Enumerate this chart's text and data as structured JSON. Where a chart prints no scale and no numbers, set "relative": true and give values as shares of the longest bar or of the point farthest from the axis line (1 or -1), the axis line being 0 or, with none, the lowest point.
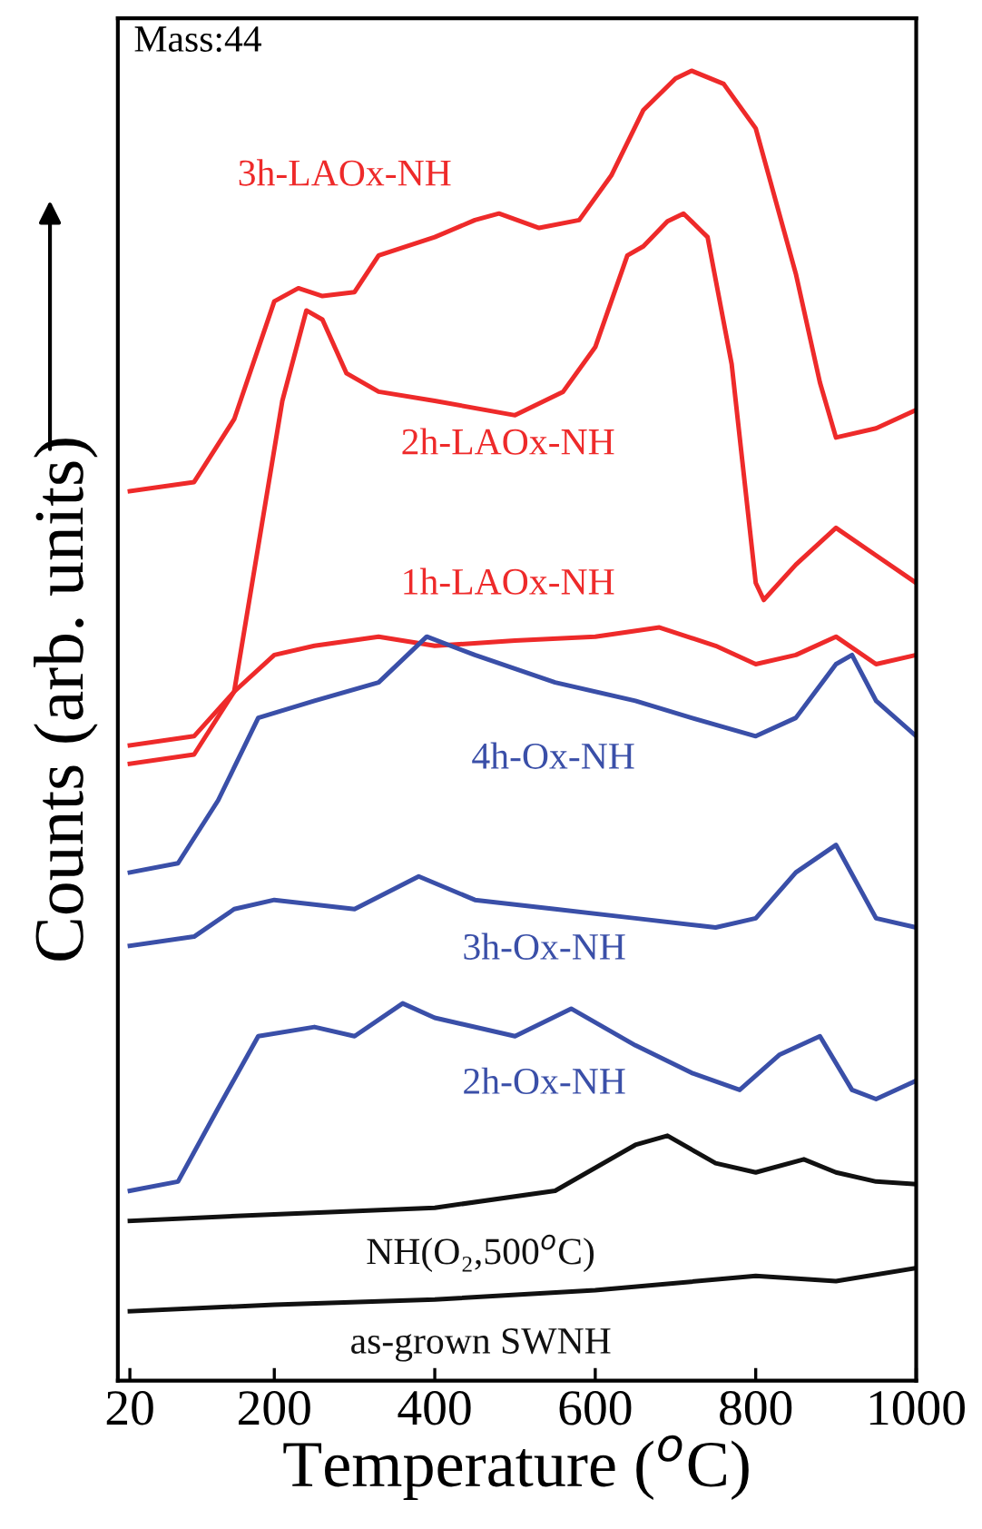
{
  "chart_data": {
    "type": "line",
    "relative": true,
    "xlabel": "Temperature ($^{o}$C)",
    "ylabel": "Counts (arb. units)",
    "xlim": [
      5,
      1000
    ],
    "xticks": [
      20,
      200,
      400,
      600,
      800,
      1000
    ],
    "grid": false,
    "legend": false,
    "marker": "none",
    "line_style": "solid",
    "annotations": [
      "Mass:44"
    ],
    "series": [
      {
        "name": "3h-LAOx-NH",
        "color": "#ee2a2a",
        "x": [
          20,
          100,
          150,
          200,
          230,
          260,
          300,
          330,
          400,
          450,
          480,
          530,
          580,
          620,
          660,
          700,
          720,
          760,
          800,
          850,
          880,
          900,
          950,
          1000
        ],
        "values": [
          0.679,
          0.686,
          0.734,
          0.824,
          0.834,
          0.828,
          0.831,
          0.859,
          0.873,
          0.886,
          0.891,
          0.88,
          0.886,
          0.92,
          0.97,
          0.994,
          1.0,
          0.99,
          0.956,
          0.845,
          0.762,
          0.72,
          0.727,
          0.741
        ]
      },
      {
        "name": "2h-LAOx-NH",
        "color": "#ee2a2a",
        "x": [
          20,
          100,
          150,
          180,
          210,
          240,
          260,
          290,
          330,
          400,
          500,
          560,
          600,
          640,
          660,
          690,
          710,
          740,
          770,
          800,
          810,
          850,
          900,
          950,
          1000
        ],
        "values": [
          0.471,
          0.478,
          0.526,
          0.637,
          0.748,
          0.817,
          0.81,
          0.769,
          0.755,
          0.748,
          0.737,
          0.755,
          0.789,
          0.859,
          0.866,
          0.885,
          0.891,
          0.873,
          0.776,
          0.609,
          0.596,
          0.623,
          0.651,
          0.63,
          0.609
        ]
      },
      {
        "name": "1h-LAOx-NH",
        "color": "#ee2a2a",
        "x": [
          20,
          100,
          150,
          200,
          250,
          330,
          400,
          500,
          600,
          680,
          750,
          800,
          850,
          900,
          950,
          1000
        ],
        "values": [
          0.485,
          0.492,
          0.526,
          0.554,
          0.561,
          0.568,
          0.561,
          0.565,
          0.568,
          0.575,
          0.561,
          0.547,
          0.554,
          0.568,
          0.547,
          0.554
        ]
      },
      {
        "name": "4h-Ox-NH",
        "color": "#3a4fa8",
        "x": [
          20,
          80,
          130,
          180,
          250,
          330,
          390,
          450,
          550,
          650,
          720,
          800,
          850,
          900,
          920,
          950,
          1000
        ],
        "values": [
          0.388,
          0.395,
          0.443,
          0.506,
          0.519,
          0.533,
          0.568,
          0.554,
          0.533,
          0.519,
          0.506,
          0.492,
          0.506,
          0.547,
          0.554,
          0.519,
          0.492
        ]
      },
      {
        "name": "3h-Ox-NH",
        "color": "#3a4fa8",
        "x": [
          20,
          100,
          150,
          200,
          300,
          380,
          450,
          550,
          650,
          750,
          800,
          850,
          900,
          950,
          1000
        ],
        "values": [
          0.332,
          0.339,
          0.36,
          0.367,
          0.36,
          0.385,
          0.367,
          0.36,
          0.353,
          0.346,
          0.353,
          0.388,
          0.409,
          0.353,
          0.346
        ]
      },
      {
        "name": "2h-Ox-NH",
        "color": "#3a4fa8",
        "x": [
          20,
          80,
          130,
          180,
          250,
          300,
          360,
          400,
          500,
          570,
          650,
          720,
          780,
          830,
          880,
          920,
          950,
          1000
        ],
        "values": [
          0.145,
          0.152,
          0.208,
          0.263,
          0.27,
          0.263,
          0.288,
          0.277,
          0.263,
          0.284,
          0.256,
          0.235,
          0.222,
          0.249,
          0.263,
          0.222,
          0.215,
          0.229
        ]
      },
      {
        "name": "NH(O₂,500$^{o}$C)",
        "color": "#111111",
        "x": [
          20,
          200,
          400,
          550,
          650,
          690,
          750,
          800,
          860,
          900,
          950,
          1000
        ],
        "values": [
          0.122,
          0.127,
          0.132,
          0.145,
          0.18,
          0.187,
          0.166,
          0.159,
          0.169,
          0.159,
          0.152,
          0.15
        ]
      },
      {
        "name": "as-grown SWNH",
        "color": "#111111",
        "x": [
          20,
          200,
          400,
          600,
          800,
          900,
          1000
        ],
        "values": [
          0.053,
          0.058,
          0.062,
          0.069,
          0.08,
          0.076,
          0.086
        ]
      }
    ]
  }
}
